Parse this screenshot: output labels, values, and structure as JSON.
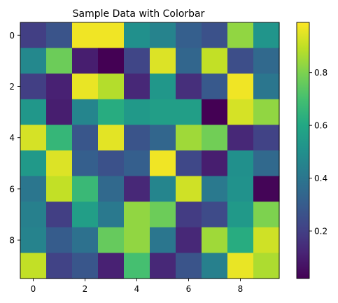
{
  "chart_data": {
    "type": "heatmap",
    "title": "Sample Data with Colorbar",
    "xlabel": "",
    "ylabel": "",
    "colormap": "viridis",
    "x_ticks": [
      "0",
      "2",
      "4",
      "6",
      "8"
    ],
    "y_ticks": [
      "0",
      "2",
      "4",
      "6",
      "8"
    ],
    "colorbar": {
      "range": [
        0.02,
        0.99
      ],
      "ticks": [
        "0.2",
        "0.4",
        "0.6",
        "0.8"
      ]
    },
    "values": [
      [
        0.2,
        0.27,
        0.97,
        0.97,
        0.5,
        0.45,
        0.31,
        0.26,
        0.83,
        0.52
      ],
      [
        0.47,
        0.77,
        0.1,
        0.01,
        0.22,
        0.94,
        0.34,
        0.9,
        0.25,
        0.35
      ],
      [
        0.2,
        0.11,
        0.96,
        0.88,
        0.13,
        0.53,
        0.15,
        0.29,
        0.97,
        0.4
      ],
      [
        0.53,
        0.1,
        0.46,
        0.62,
        0.54,
        0.56,
        0.56,
        0.02,
        0.93,
        0.83
      ],
      [
        0.93,
        0.66,
        0.28,
        0.95,
        0.27,
        0.34,
        0.85,
        0.78,
        0.13,
        0.21
      ],
      [
        0.54,
        0.94,
        0.31,
        0.26,
        0.31,
        0.97,
        0.23,
        0.1,
        0.5,
        0.35
      ],
      [
        0.4,
        0.9,
        0.67,
        0.35,
        0.13,
        0.46,
        0.92,
        0.41,
        0.51,
        0.03
      ],
      [
        0.44,
        0.2,
        0.56,
        0.41,
        0.83,
        0.77,
        0.19,
        0.24,
        0.54,
        0.8
      ],
      [
        0.45,
        0.3,
        0.38,
        0.76,
        0.83,
        0.4,
        0.13,
        0.85,
        0.62,
        0.92
      ],
      [
        0.9,
        0.21,
        0.28,
        0.11,
        0.7,
        0.13,
        0.27,
        0.44,
        0.96,
        0.87
      ]
    ]
  }
}
